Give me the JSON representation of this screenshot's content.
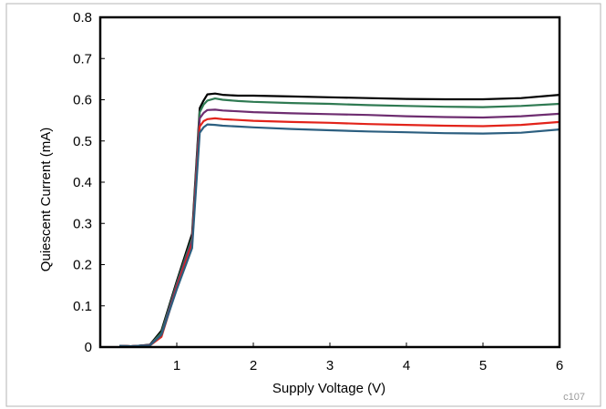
{
  "chart_data": {
    "type": "line",
    "xlabel": "Supply Voltage (V)",
    "ylabel": "Quiescent Current (mA)",
    "xlim": [
      0,
      6
    ],
    "ylim": [
      0,
      0.8
    ],
    "xticks": [
      1,
      2,
      3,
      4,
      5,
      6
    ],
    "yticks": [
      0,
      0.1,
      0.2,
      0.3,
      0.4,
      0.5,
      0.6,
      0.7,
      0.8
    ],
    "grid": false,
    "legend": "none",
    "code": "c107",
    "series": [
      {
        "color": "#000000",
        "x": [
          0.25,
          0.4,
          0.5,
          0.65,
          0.8,
          1.0,
          1.2,
          1.3,
          1.35,
          1.4,
          1.5,
          1.6,
          1.8,
          2.0,
          2.5,
          3.0,
          3.5,
          4.0,
          4.5,
          5.0,
          5.5,
          6.0
        ],
        "y": [
          0.003,
          0.002,
          0.003,
          0.006,
          0.04,
          0.16,
          0.275,
          0.58,
          0.598,
          0.613,
          0.615,
          0.612,
          0.61,
          0.61,
          0.608,
          0.606,
          0.604,
          0.602,
          0.601,
          0.601,
          0.604,
          0.612
        ]
      },
      {
        "color": "#2f7a52",
        "x": [
          0.25,
          0.4,
          0.5,
          0.65,
          0.8,
          1.0,
          1.2,
          1.3,
          1.35,
          1.4,
          1.5,
          1.6,
          1.8,
          2.0,
          2.5,
          3.0,
          3.5,
          4.0,
          4.5,
          5.0,
          5.5,
          6.0
        ],
        "y": [
          0.003,
          0.002,
          0.003,
          0.005,
          0.035,
          0.155,
          0.265,
          0.57,
          0.588,
          0.598,
          0.603,
          0.6,
          0.597,
          0.595,
          0.592,
          0.59,
          0.587,
          0.585,
          0.583,
          0.582,
          0.585,
          0.59
        ]
      },
      {
        "color": "#6e2d70",
        "x": [
          0.25,
          0.4,
          0.5,
          0.65,
          0.8,
          1.0,
          1.2,
          1.3,
          1.35,
          1.4,
          1.5,
          1.6,
          1.8,
          2.0,
          2.5,
          3.0,
          3.5,
          4.0,
          4.5,
          5.0,
          5.5,
          6.0
        ],
        "y": [
          0.003,
          0.002,
          0.003,
          0.005,
          0.03,
          0.15,
          0.258,
          0.555,
          0.568,
          0.575,
          0.576,
          0.574,
          0.572,
          0.57,
          0.567,
          0.565,
          0.563,
          0.56,
          0.558,
          0.557,
          0.56,
          0.566
        ]
      },
      {
        "color": "#e2231a",
        "x": [
          0.25,
          0.4,
          0.5,
          0.65,
          0.8,
          1.0,
          1.2,
          1.3,
          1.35,
          1.4,
          1.5,
          1.6,
          1.8,
          2.0,
          2.5,
          3.0,
          3.5,
          4.0,
          4.5,
          5.0,
          5.5,
          6.0
        ],
        "y": [
          0.003,
          0.002,
          0.003,
          0.004,
          0.025,
          0.145,
          0.25,
          0.535,
          0.548,
          0.553,
          0.555,
          0.553,
          0.551,
          0.549,
          0.546,
          0.544,
          0.541,
          0.539,
          0.537,
          0.536,
          0.539,
          0.546
        ]
      },
      {
        "color": "#2c5f80",
        "x": [
          0.25,
          0.4,
          0.5,
          0.65,
          0.8,
          1.0,
          1.2,
          1.3,
          1.35,
          1.4,
          1.5,
          1.6,
          1.8,
          2.0,
          2.5,
          3.0,
          3.5,
          4.0,
          4.5,
          5.0,
          5.5,
          6.0
        ],
        "y": [
          0.003,
          0.002,
          0.003,
          0.004,
          0.03,
          0.14,
          0.24,
          0.52,
          0.533,
          0.54,
          0.539,
          0.537,
          0.535,
          0.533,
          0.529,
          0.526,
          0.523,
          0.521,
          0.519,
          0.518,
          0.52,
          0.528
        ]
      }
    ]
  }
}
